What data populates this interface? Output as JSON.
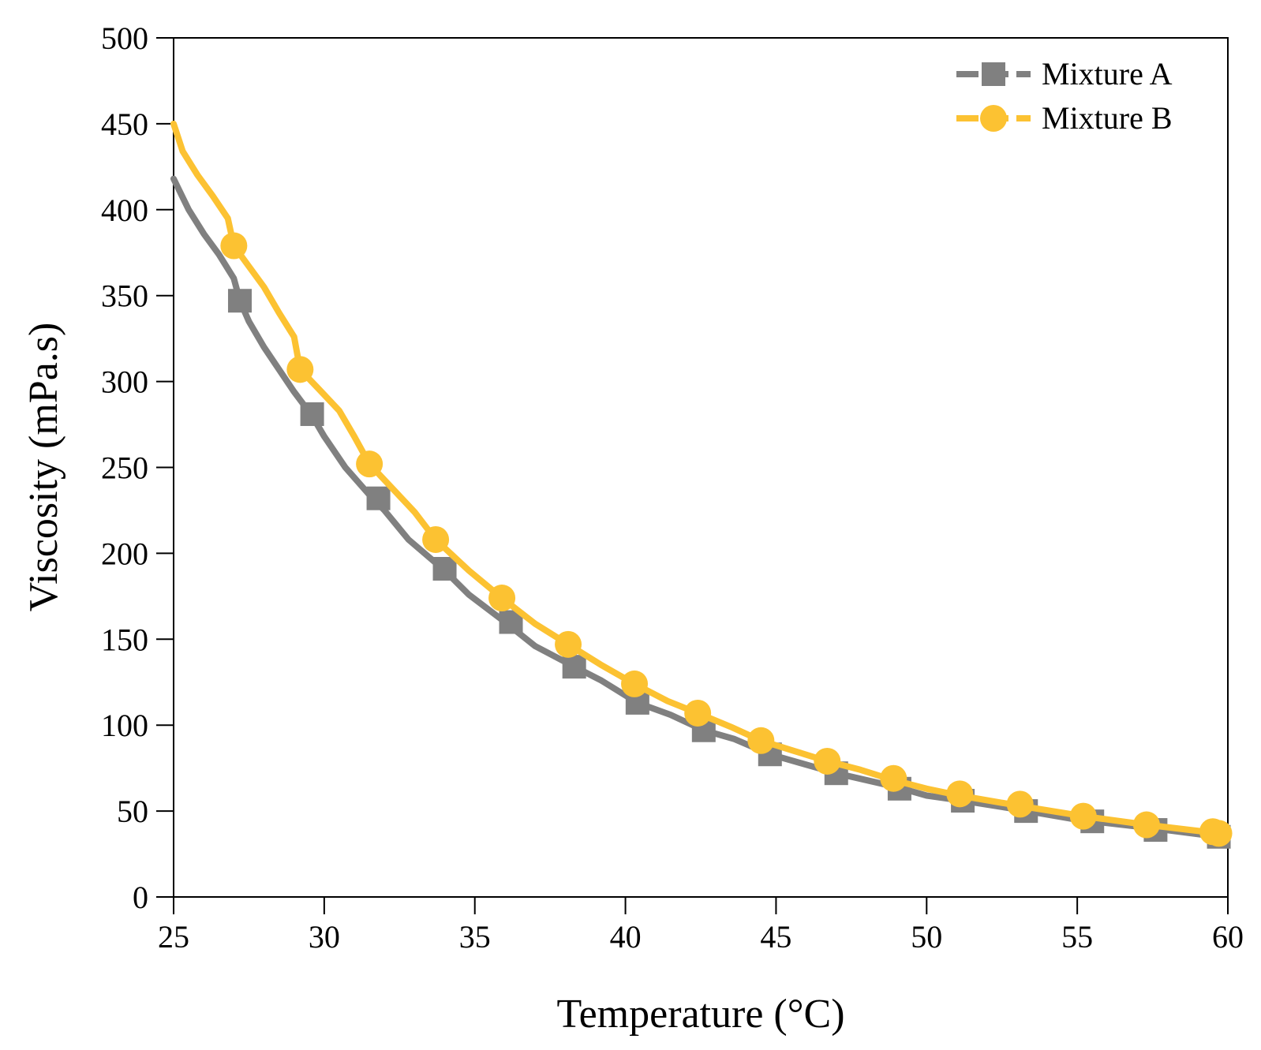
{
  "chart_data": {
    "type": "line",
    "title": "",
    "xlabel": "Temperature (°C)",
    "ylabel": "Viscosity (mPa.s)",
    "xlim": [
      25,
      60
    ],
    "ylim": [
      0,
      500
    ],
    "xticks": [
      25,
      30,
      35,
      40,
      45,
      50,
      55,
      60
    ],
    "yticks": [
      0,
      50,
      100,
      150,
      200,
      250,
      300,
      350,
      400,
      450,
      500
    ],
    "grid": false,
    "legend_position": "top-right",
    "series": [
      {
        "name": "Mixture A",
        "color": "#808080",
        "marker": "square",
        "curve": [
          {
            "x": 25.0,
            "y": 418
          },
          {
            "x": 25.5,
            "y": 400
          },
          {
            "x": 26.0,
            "y": 386
          },
          {
            "x": 26.5,
            "y": 374
          },
          {
            "x": 27.0,
            "y": 360
          },
          {
            "x": 27.2,
            "y": 347
          },
          {
            "x": 27.5,
            "y": 335
          },
          {
            "x": 28.0,
            "y": 320
          },
          {
            "x": 28.5,
            "y": 307
          },
          {
            "x": 29.0,
            "y": 294
          },
          {
            "x": 29.6,
            "y": 280
          },
          {
            "x": 30.0,
            "y": 268
          },
          {
            "x": 30.7,
            "y": 250
          },
          {
            "x": 31.5,
            "y": 234
          },
          {
            "x": 32.0,
            "y": 225
          },
          {
            "x": 32.8,
            "y": 208
          },
          {
            "x": 34.0,
            "y": 190
          },
          {
            "x": 34.8,
            "y": 176
          },
          {
            "x": 36.0,
            "y": 160
          },
          {
            "x": 37.0,
            "y": 146
          },
          {
            "x": 38.3,
            "y": 134
          },
          {
            "x": 39.2,
            "y": 126
          },
          {
            "x": 40.4,
            "y": 113
          },
          {
            "x": 41.5,
            "y": 106
          },
          {
            "x": 42.6,
            "y": 97
          },
          {
            "x": 43.6,
            "y": 92
          },
          {
            "x": 44.8,
            "y": 83
          },
          {
            "x": 45.8,
            "y": 78
          },
          {
            "x": 47.0,
            "y": 72
          },
          {
            "x": 48.5,
            "y": 66
          },
          {
            "x": 49.2,
            "y": 63
          },
          {
            "x": 50.0,
            "y": 59
          },
          {
            "x": 51.2,
            "y": 56
          },
          {
            "x": 53.0,
            "y": 51
          },
          {
            "x": 55.0,
            "y": 45
          },
          {
            "x": 57.5,
            "y": 40
          },
          {
            "x": 59.7,
            "y": 35
          }
        ],
        "markers": [
          {
            "x": 27.2,
            "y": 347
          },
          {
            "x": 29.6,
            "y": 281
          },
          {
            "x": 31.8,
            "y": 232
          },
          {
            "x": 34.0,
            "y": 191
          },
          {
            "x": 36.2,
            "y": 160
          },
          {
            "x": 38.3,
            "y": 134
          },
          {
            "x": 40.4,
            "y": 113
          },
          {
            "x": 42.6,
            "y": 97
          },
          {
            "x": 44.8,
            "y": 83
          },
          {
            "x": 47.0,
            "y": 72
          },
          {
            "x": 49.1,
            "y": 63
          },
          {
            "x": 51.2,
            "y": 56
          },
          {
            "x": 53.3,
            "y": 50
          },
          {
            "x": 55.5,
            "y": 44
          },
          {
            "x": 57.6,
            "y": 39
          },
          {
            "x": 59.7,
            "y": 35
          }
        ]
      },
      {
        "name": "Mixture B",
        "color": "#FCC232",
        "marker": "circle",
        "curve": [
          {
            "x": 25.0,
            "y": 450
          },
          {
            "x": 25.3,
            "y": 434
          },
          {
            "x": 25.8,
            "y": 420
          },
          {
            "x": 26.3,
            "y": 408
          },
          {
            "x": 26.8,
            "y": 395
          },
          {
            "x": 27.0,
            "y": 379
          },
          {
            "x": 27.5,
            "y": 367
          },
          {
            "x": 28.0,
            "y": 355
          },
          {
            "x": 28.5,
            "y": 340
          },
          {
            "x": 29.0,
            "y": 326
          },
          {
            "x": 29.2,
            "y": 307
          },
          {
            "x": 29.8,
            "y": 296
          },
          {
            "x": 30.5,
            "y": 283
          },
          {
            "x": 31.0,
            "y": 268
          },
          {
            "x": 31.5,
            "y": 252
          },
          {
            "x": 32.2,
            "y": 239
          },
          {
            "x": 33.0,
            "y": 224
          },
          {
            "x": 33.7,
            "y": 208
          },
          {
            "x": 34.8,
            "y": 190
          },
          {
            "x": 35.9,
            "y": 174
          },
          {
            "x": 37.0,
            "y": 159
          },
          {
            "x": 38.1,
            "y": 147
          },
          {
            "x": 39.2,
            "y": 135
          },
          {
            "x": 40.3,
            "y": 124
          },
          {
            "x": 41.4,
            "y": 114
          },
          {
            "x": 42.4,
            "y": 107
          },
          {
            "x": 43.5,
            "y": 99
          },
          {
            "x": 44.5,
            "y": 91
          },
          {
            "x": 45.6,
            "y": 85
          },
          {
            "x": 46.7,
            "y": 79
          },
          {
            "x": 47.8,
            "y": 74
          },
          {
            "x": 48.9,
            "y": 68
          },
          {
            "x": 50.0,
            "y": 63
          },
          {
            "x": 51.1,
            "y": 59
          },
          {
            "x": 53.1,
            "y": 53
          },
          {
            "x": 55.2,
            "y": 47
          },
          {
            "x": 57.3,
            "y": 42
          },
          {
            "x": 59.7,
            "y": 37
          }
        ],
        "markers": [
          {
            "x": 27.0,
            "y": 379
          },
          {
            "x": 29.2,
            "y": 307
          },
          {
            "x": 31.5,
            "y": 252
          },
          {
            "x": 33.7,
            "y": 208
          },
          {
            "x": 35.9,
            "y": 174
          },
          {
            "x": 38.1,
            "y": 147
          },
          {
            "x": 40.3,
            "y": 124
          },
          {
            "x": 42.4,
            "y": 107
          },
          {
            "x": 44.5,
            "y": 91
          },
          {
            "x": 46.7,
            "y": 79
          },
          {
            "x": 48.9,
            "y": 69
          },
          {
            "x": 51.1,
            "y": 60
          },
          {
            "x": 53.1,
            "y": 54
          },
          {
            "x": 55.2,
            "y": 47
          },
          {
            "x": 57.3,
            "y": 42
          },
          {
            "x": 59.5,
            "y": 38
          },
          {
            "x": 59.7,
            "y": 37
          }
        ]
      }
    ]
  }
}
